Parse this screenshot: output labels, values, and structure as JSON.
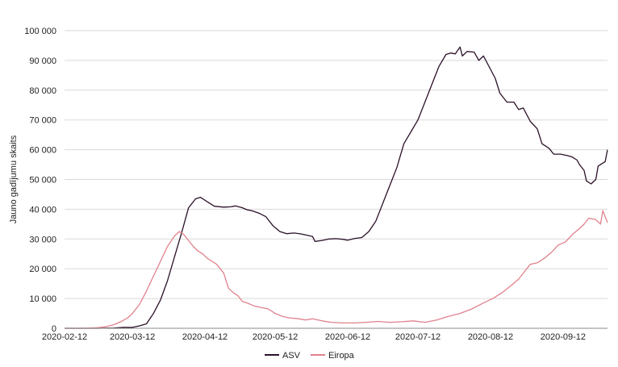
{
  "chart_data": {
    "type": "line",
    "title": "",
    "xlabel": "",
    "ylabel": "Jauno gadījumu skaits",
    "ylim": [
      0,
      100000
    ],
    "yticks": [
      0,
      10000,
      20000,
      30000,
      40000,
      50000,
      60000,
      70000,
      80000,
      90000,
      100000
    ],
    "ytick_labels": [
      "0",
      "10 000",
      "20 000",
      "30 000",
      "40 000",
      "50 000",
      "60 000",
      "70 000",
      "80 000",
      "90 000",
      "100 000"
    ],
    "xlim": [
      "2020-02-12",
      "2020-10-01"
    ],
    "xticks": [
      "2020-02-12",
      "2020-03-12",
      "2020-04-12",
      "2020-05-12",
      "2020-06-12",
      "2020-07-12",
      "2020-08-12",
      "2020-09-12"
    ],
    "grid": "horizontal",
    "legend_position": "bottom",
    "series": [
      {
        "name": "ASV",
        "color": "#2a1128",
        "points": [
          [
            "2020-02-12",
            0
          ],
          [
            "2020-02-26",
            0
          ],
          [
            "2020-03-04",
            100
          ],
          [
            "2020-03-08",
            300
          ],
          [
            "2020-03-12",
            300
          ],
          [
            "2020-03-15",
            800
          ],
          [
            "2020-03-18",
            1500
          ],
          [
            "2020-03-21",
            5000
          ],
          [
            "2020-03-24",
            9500
          ],
          [
            "2020-03-27",
            16000
          ],
          [
            "2020-03-30",
            24000
          ],
          [
            "2020-04-02",
            32000
          ],
          [
            "2020-04-05",
            40500
          ],
          [
            "2020-04-08",
            43500
          ],
          [
            "2020-04-10",
            44000
          ],
          [
            "2020-04-13",
            42500
          ],
          [
            "2020-04-16",
            41000
          ],
          [
            "2020-04-20",
            40700
          ],
          [
            "2020-04-23",
            40800
          ],
          [
            "2020-04-25",
            41100
          ],
          [
            "2020-04-28",
            40500
          ],
          [
            "2020-04-30",
            39800
          ],
          [
            "2020-05-02",
            39500
          ],
          [
            "2020-05-05",
            38700
          ],
          [
            "2020-05-08",
            37500
          ],
          [
            "2020-05-11",
            34500
          ],
          [
            "2020-05-14",
            32500
          ],
          [
            "2020-05-17",
            31800
          ],
          [
            "2020-05-20",
            32000
          ],
          [
            "2020-05-23",
            31700
          ],
          [
            "2020-05-26",
            31200
          ],
          [
            "2020-05-28",
            30800
          ],
          [
            "2020-05-29",
            29200
          ],
          [
            "2020-06-01",
            29500
          ],
          [
            "2020-06-04",
            30000
          ],
          [
            "2020-06-07",
            30100
          ],
          [
            "2020-06-10",
            29900
          ],
          [
            "2020-06-12",
            29600
          ],
          [
            "2020-06-15",
            30200
          ],
          [
            "2020-06-18",
            30500
          ],
          [
            "2020-06-21",
            32500
          ],
          [
            "2020-06-24",
            36000
          ],
          [
            "2020-06-27",
            42000
          ],
          [
            "2020-06-30",
            48000
          ],
          [
            "2020-07-03",
            54000
          ],
          [
            "2020-07-06",
            62000
          ],
          [
            "2020-07-09",
            66000
          ],
          [
            "2020-07-12",
            70000
          ],
          [
            "2020-07-15",
            76000
          ],
          [
            "2020-07-18",
            82000
          ],
          [
            "2020-07-21",
            88000
          ],
          [
            "2020-07-24",
            92000
          ],
          [
            "2020-07-26",
            92500
          ],
          [
            "2020-07-28",
            92200
          ],
          [
            "2020-07-30",
            94500
          ],
          [
            "2020-07-31",
            91500
          ],
          [
            "2020-08-02",
            93000
          ],
          [
            "2020-08-05",
            92800
          ],
          [
            "2020-08-07",
            90000
          ],
          [
            "2020-08-09",
            91500
          ],
          [
            "2020-08-12",
            87000
          ],
          [
            "2020-08-14",
            84000
          ],
          [
            "2020-08-16",
            79000
          ],
          [
            "2020-08-19",
            76000
          ],
          [
            "2020-08-22",
            76000
          ],
          [
            "2020-08-24",
            73500
          ],
          [
            "2020-08-26",
            74000
          ],
          [
            "2020-08-29",
            69500
          ],
          [
            "2020-09-01",
            67000
          ],
          [
            "2020-09-03",
            62000
          ],
          [
            "2020-09-06",
            60500
          ],
          [
            "2020-09-08",
            58500
          ],
          [
            "2020-09-11",
            58500
          ],
          [
            "2020-09-14",
            58000
          ],
          [
            "2020-09-16",
            57500
          ],
          [
            "2020-09-18",
            56500
          ],
          [
            "2020-09-19",
            55000
          ],
          [
            "2020-09-21",
            53000
          ],
          [
            "2020-09-22",
            49500
          ],
          [
            "2020-09-24",
            48500
          ],
          [
            "2020-09-26",
            50000
          ],
          [
            "2020-09-27",
            54500
          ],
          [
            "2020-09-29",
            55500
          ],
          [
            "2020-09-30",
            56000
          ],
          [
            "2020-10-01",
            60000
          ]
        ]
      },
      {
        "name": "Eiropa",
        "color": "#e0818d",
        "points": [
          [
            "2020-02-12",
            0
          ],
          [
            "2020-02-20",
            0
          ],
          [
            "2020-02-26",
            200
          ],
          [
            "2020-03-01",
            600
          ],
          [
            "2020-03-04",
            1200
          ],
          [
            "2020-03-07",
            2200
          ],
          [
            "2020-03-10",
            3500
          ],
          [
            "2020-03-12",
            5000
          ],
          [
            "2020-03-15",
            8000
          ],
          [
            "2020-03-18",
            12500
          ],
          [
            "2020-03-21",
            17500
          ],
          [
            "2020-03-24",
            22500
          ],
          [
            "2020-03-27",
            27500
          ],
          [
            "2020-03-30",
            31000
          ],
          [
            "2020-04-01",
            32500
          ],
          [
            "2020-04-03",
            31500
          ],
          [
            "2020-04-05",
            29500
          ],
          [
            "2020-04-07",
            27500
          ],
          [
            "2020-04-09",
            26000
          ],
          [
            "2020-04-11",
            25000
          ],
          [
            "2020-04-13",
            23500
          ],
          [
            "2020-04-15",
            22500
          ],
          [
            "2020-04-17",
            21500
          ],
          [
            "2020-04-20",
            18500
          ],
          [
            "2020-04-22",
            13500
          ],
          [
            "2020-04-24",
            12000
          ],
          [
            "2020-04-26",
            11000
          ],
          [
            "2020-04-28",
            9000
          ],
          [
            "2020-04-30",
            8500
          ],
          [
            "2020-05-03",
            7500
          ],
          [
            "2020-05-06",
            7000
          ],
          [
            "2020-05-09",
            6500
          ],
          [
            "2020-05-12",
            5000
          ],
          [
            "2020-05-15",
            4000
          ],
          [
            "2020-05-18",
            3500
          ],
          [
            "2020-05-22",
            3200
          ],
          [
            "2020-05-25",
            2800
          ],
          [
            "2020-05-28",
            3200
          ],
          [
            "2020-06-01",
            2500
          ],
          [
            "2020-06-05",
            2000
          ],
          [
            "2020-06-10",
            1800
          ],
          [
            "2020-06-15",
            1800
          ],
          [
            "2020-06-20",
            2000
          ],
          [
            "2020-06-25",
            2300
          ],
          [
            "2020-06-30",
            2000
          ],
          [
            "2020-07-05",
            2200
          ],
          [
            "2020-07-10",
            2500
          ],
          [
            "2020-07-15",
            2000
          ],
          [
            "2020-07-20",
            2800
          ],
          [
            "2020-07-25",
            4000
          ],
          [
            "2020-07-30",
            5000
          ],
          [
            "2020-08-04",
            6500
          ],
          [
            "2020-08-09",
            8500
          ],
          [
            "2020-08-13",
            10000
          ],
          [
            "2020-08-17",
            12000
          ],
          [
            "2020-08-21",
            14500
          ],
          [
            "2020-08-24",
            16500
          ],
          [
            "2020-08-27",
            19500
          ],
          [
            "2020-08-29",
            21500
          ],
          [
            "2020-09-01",
            22000
          ],
          [
            "2020-09-04",
            23500
          ],
          [
            "2020-09-07",
            25500
          ],
          [
            "2020-09-10",
            28000
          ],
          [
            "2020-09-13",
            29000
          ],
          [
            "2020-09-16",
            31500
          ],
          [
            "2020-09-19",
            33500
          ],
          [
            "2020-09-21",
            35000
          ],
          [
            "2020-09-23",
            37000
          ],
          [
            "2020-09-26",
            36500
          ],
          [
            "2020-09-28",
            35000
          ],
          [
            "2020-09-29",
            39500
          ],
          [
            "2020-10-01",
            35500
          ]
        ]
      }
    ]
  }
}
